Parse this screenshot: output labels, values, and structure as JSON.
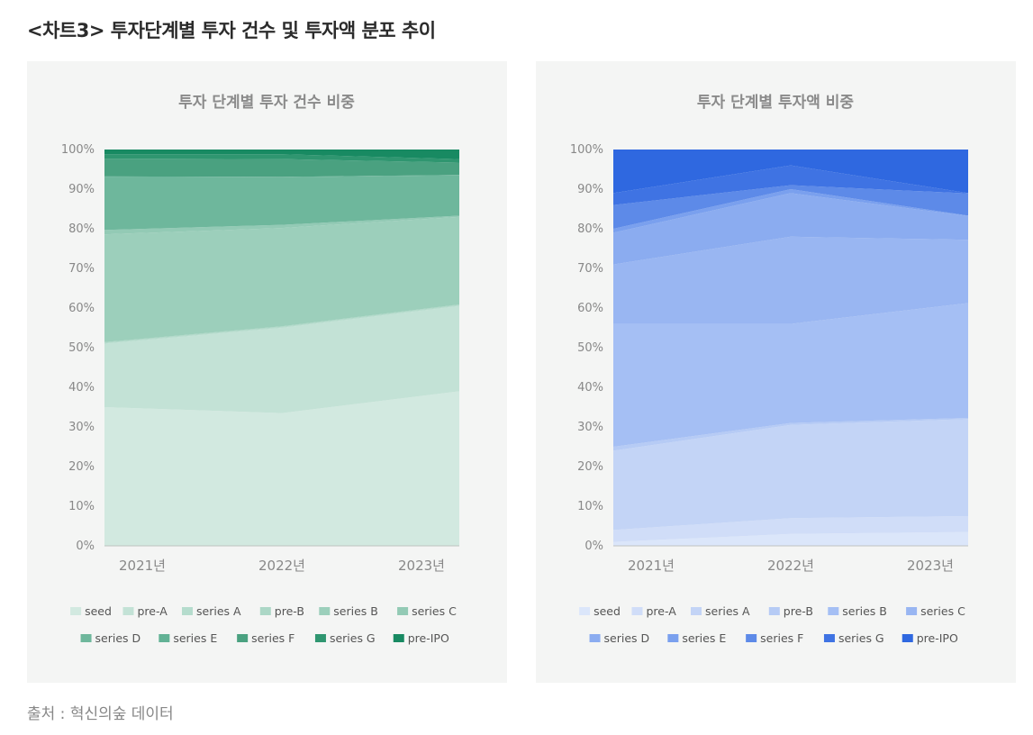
{
  "page_title": "<차트3>  투자단계별 투자 건수 및 투자액 분포 추이",
  "source_text": "출처 : 혁신의숲 데이터",
  "chart_data": [
    {
      "type": "area",
      "stacked": "percent",
      "title": "투자 단계별 투자 건수 비중",
      "categories": [
        "2021년",
        "2022년",
        "2023년"
      ],
      "ylim": [
        0,
        100
      ],
      "y_ticks": [
        "0%",
        "10%",
        "20%",
        "30%",
        "40%",
        "50%",
        "60%",
        "70%",
        "80%",
        "90%",
        "100%"
      ],
      "legend_position": "bottom",
      "series": [
        {
          "name": "seed",
          "color": "#d2e9e0",
          "values": [
            35,
            33.5,
            39
          ]
        },
        {
          "name": "pre-A",
          "color": "#c3e2d6",
          "values": [
            16,
            21.5,
            21.5
          ]
        },
        {
          "name": "series A",
          "color": "#b5dccd",
          "values": [
            0.2,
            0.2,
            0.2
          ]
        },
        {
          "name": "pre-B",
          "color": "#acd7c6",
          "values": [
            0.2,
            0.2,
            0.2
          ]
        },
        {
          "name": "series B",
          "color": "#9ccfbb",
          "values": [
            27.2,
            24.8,
            22.1
          ]
        },
        {
          "name": "series C",
          "color": "#93cab5",
          "values": [
            1.1,
            0.8,
            0.3
          ]
        },
        {
          "name": "series D",
          "color": "#6eb79c",
          "values": [
            13.4,
            12,
            10.2
          ]
        },
        {
          "name": "series E",
          "color": "#62b295",
          "values": [
            0.1,
            0.1,
            0.1
          ]
        },
        {
          "name": "series F",
          "color": "#4aa180",
          "values": [
            4.5,
            4.5,
            3.1
          ]
        },
        {
          "name": "series G",
          "color": "#2f9670",
          "values": [
            1.1,
            1.2,
            0.9
          ]
        },
        {
          "name": "pre-IPO",
          "color": "#188a62",
          "values": [
            1.2,
            1.2,
            2.4
          ]
        }
      ]
    },
    {
      "type": "area",
      "stacked": "percent",
      "title": "투자 단계별 투자액 비중",
      "categories": [
        "2021년",
        "2022년",
        "2023년"
      ],
      "ylim": [
        0,
        100
      ],
      "y_ticks": [
        "0%",
        "10%",
        "20%",
        "30%",
        "40%",
        "50%",
        "60%",
        "70%",
        "80%",
        "90%",
        "100%"
      ],
      "legend_position": "bottom",
      "series": [
        {
          "name": "seed",
          "color": "#dbe6fa",
          "values": [
            1,
            3,
            3.5
          ]
        },
        {
          "name": "pre-A",
          "color": "#d0ddf8",
          "values": [
            3,
            4,
            4
          ]
        },
        {
          "name": "series A",
          "color": "#c3d4f6",
          "values": [
            20,
            23.5,
            24.5
          ]
        },
        {
          "name": "pre-B",
          "color": "#b6cbf5",
          "values": [
            1,
            0.5,
            0.3
          ]
        },
        {
          "name": "series B",
          "color": "#a5bff4",
          "values": [
            31,
            25,
            29
          ]
        },
        {
          "name": "series C",
          "color": "#99b6f2",
          "values": [
            15,
            22,
            16
          ]
        },
        {
          "name": "series D",
          "color": "#8bacf0",
          "values": [
            8,
            11,
            6
          ]
        },
        {
          "name": "series E",
          "color": "#7aa0ee",
          "values": [
            1,
            1,
            0.1
          ]
        },
        {
          "name": "series F",
          "color": "#5d8ae8",
          "values": [
            6,
            1,
            5.6
          ]
        },
        {
          "name": "series G",
          "color": "#3f73e3",
          "values": [
            3,
            5,
            0.1
          ]
        },
        {
          "name": "pre-IPO",
          "color": "#2f68e0",
          "values": [
            11,
            4,
            11
          ]
        }
      ]
    }
  ]
}
